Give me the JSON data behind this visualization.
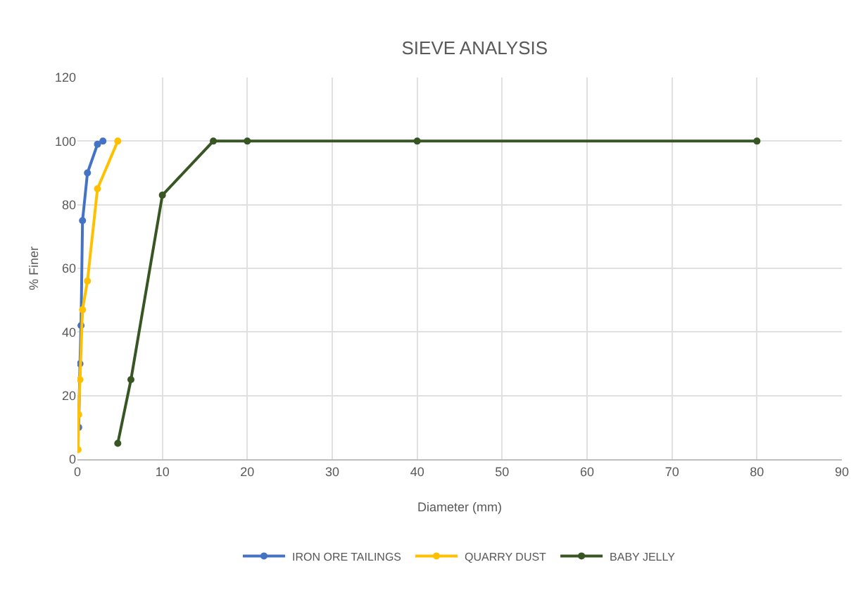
{
  "chart_data": {
    "type": "line",
    "title": "SIEVE ANALYSIS",
    "xlabel": "Diameter (mm)",
    "ylabel": "% Finer",
    "xlim": [
      0,
      90
    ],
    "xticks": [
      0,
      10,
      20,
      30,
      40,
      50,
      60,
      70,
      80,
      90
    ],
    "ylim": [
      0,
      120
    ],
    "yticks": [
      0,
      20,
      40,
      60,
      80,
      100,
      120
    ],
    "grid": true,
    "legend": "bottom",
    "marker": "circle",
    "line_style": "solid",
    "series": [
      {
        "name": "IRON ORE TAILINGS",
        "color": "#4472c4",
        "x": [
          0.15,
          0.3,
          0.425,
          0.6,
          1.18,
          2.36,
          3
        ],
        "values": [
          10,
          30,
          42,
          75,
          90,
          99,
          100
        ]
      },
      {
        "name": "QUARRY DUST",
        "color": "#ffc000",
        "x": [
          0.075,
          0.15,
          0.3,
          0.6,
          1.18,
          2.36,
          4.75
        ],
        "values": [
          3,
          14,
          25,
          47,
          56,
          85,
          100
        ]
      },
      {
        "name": "BABY JELLY",
        "color": "#375623",
        "x": [
          4.75,
          6.3,
          10,
          16,
          20,
          40,
          80
        ],
        "values": [
          5,
          25,
          83,
          100,
          100,
          100,
          100
        ]
      }
    ]
  }
}
